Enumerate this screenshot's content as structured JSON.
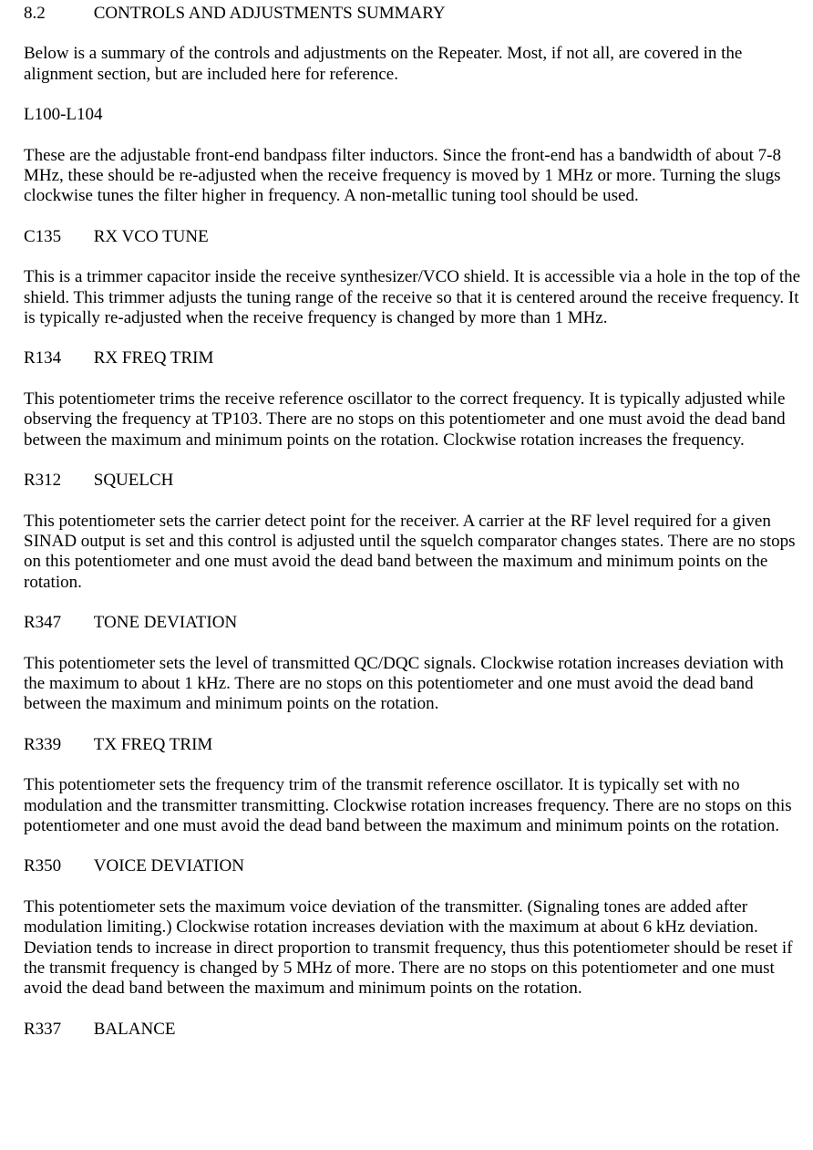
{
  "section": {
    "number": "8.2",
    "title": "CONTROLS AND ADJUSTMENTS SUMMARY"
  },
  "intro": "Below is a summary of the controls and adjustments on the Repeater.  Most, if not all, are covered in the alignment section, but are included here for reference.",
  "items": [
    {
      "ref": "L100-L104",
      "name": "",
      "body": "These are the adjustable front-end bandpass filter inductors.  Since the front-end has a bandwidth of about 7-8 MHz, these should be re-adjusted when the receive frequency is moved by 1 MHz or more.  Turning the slugs clockwise tunes the filter higher in frequency.  A non-metallic tuning tool should be used."
    },
    {
      "ref": "C135",
      "name": "RX VCO TUNE",
      "body": "This is a trimmer capacitor inside the receive synthesizer/VCO shield.  It is accessible via a hole in the top of the shield.  This trimmer adjusts the tuning range of the receive so that it is centered around the receive frequency.  It is typically re-adjusted when the receive frequency is changed by more than 1 MHz."
    },
    {
      "ref": "R134",
      "name": "RX FREQ TRIM",
      "body": "This potentiometer trims the receive reference oscillator to the correct frequency.  It is typically adjusted while observing the frequency at TP103.  There are no stops on this potentiometer and one must avoid the dead band between the maximum and minimum points on the rotation.  Clockwise rotation increases the frequency."
    },
    {
      "ref": "R312",
      "name": "SQUELCH",
      "body": "This potentiometer sets the carrier detect point for the receiver.  A carrier at the RF level required for a given SINAD output is set and this control is adjusted until the squelch comparator changes states. There are no stops on this potentiometer and one must avoid the dead band between the maximum and minimum points on the rotation."
    },
    {
      "ref": "R347",
      "name": "TONE DEVIATION",
      "body": "This potentiometer sets the level of transmitted QC/DQC signals.  Clockwise rotation increases deviation with the maximum to about 1 kHz. There are no stops on this potentiometer and one must avoid the dead band between the maximum and minimum points on the rotation."
    },
    {
      "ref": "R339",
      "name": "TX FREQ TRIM",
      "body": "This potentiometer sets the frequency trim of the transmit reference oscillator.  It is typically set with no modulation and the transmitter transmitting.  Clockwise rotation increases frequency. There are no stops on this potentiometer and one must avoid the dead band between the maximum and minimum points on the rotation."
    },
    {
      "ref": "R350",
      "name": "VOICE DEVIATION",
      "body": "This potentiometer sets the maximum voice deviation of the transmitter.  (Signaling tones are added after modulation limiting.)  Clockwise rotation increases deviation with the maximum at about 6 kHz deviation.  Deviation tends to increase in direct proportion to transmit frequency, thus this potentiometer should be reset if the transmit frequency is changed by 5 MHz of more.  There are no stops on this potentiometer and one must avoid the dead band between the maximum and minimum points on the rotation."
    },
    {
      "ref": "R337",
      "name": "BALANCE",
      "body": ""
    }
  ]
}
